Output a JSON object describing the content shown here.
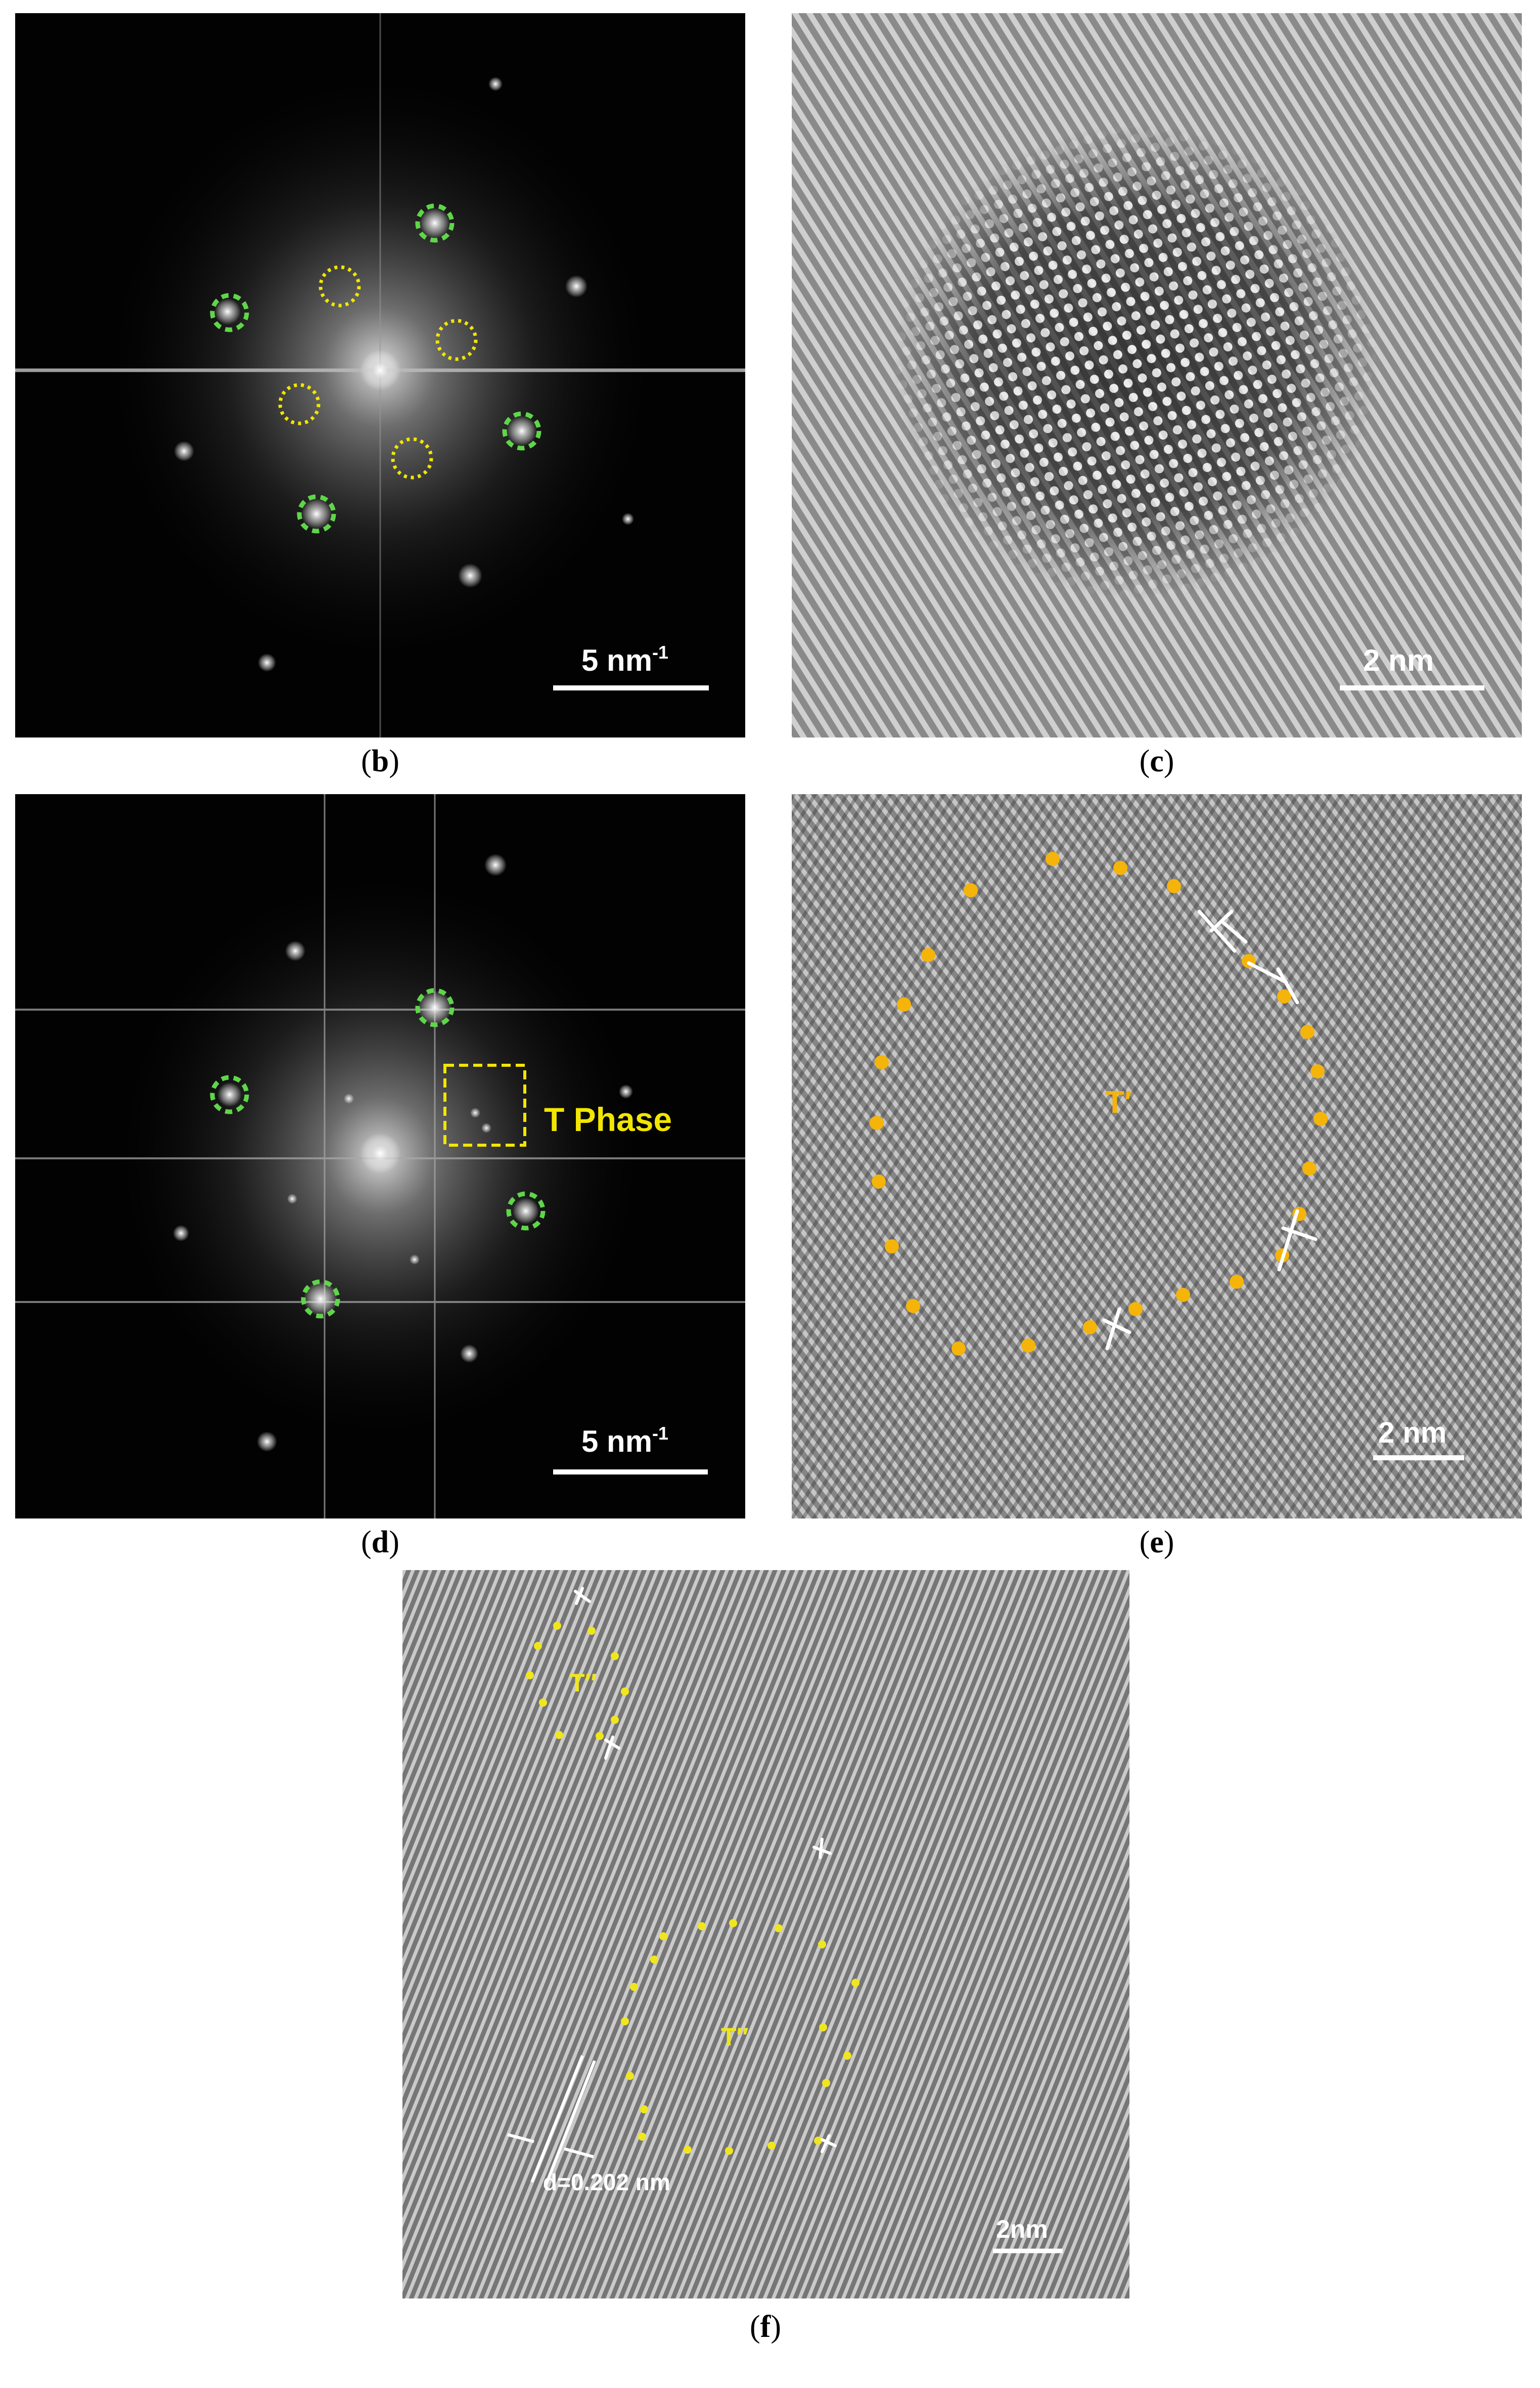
{
  "figure": {
    "panels": [
      {
        "id": "b",
        "caption": "b",
        "scale_bar": "5 nm",
        "scale_bar_sup": "-1"
      },
      {
        "id": "c",
        "caption": "c",
        "scale_bar": "2 nm"
      },
      {
        "id": "d",
        "caption": "d",
        "scale_bar": "5 nm",
        "scale_bar_sup": "-1",
        "annotation": "T Phase"
      },
      {
        "id": "e",
        "caption": "e",
        "scale_bar": "2 nm",
        "region_label": "T′"
      },
      {
        "id": "f",
        "caption": "f",
        "scale_bar": "2nm",
        "region_label_1": "T′′",
        "region_label_2": "T′′",
        "measurement": "d=0.202 nm"
      }
    ]
  },
  "colors": {
    "green_marker": "#5fd64a",
    "yellow_marker": "#f2e600",
    "orange_dot": "#f5b40a",
    "yellow_dot": "#f0e61e",
    "dislocation": "#ffffff"
  }
}
